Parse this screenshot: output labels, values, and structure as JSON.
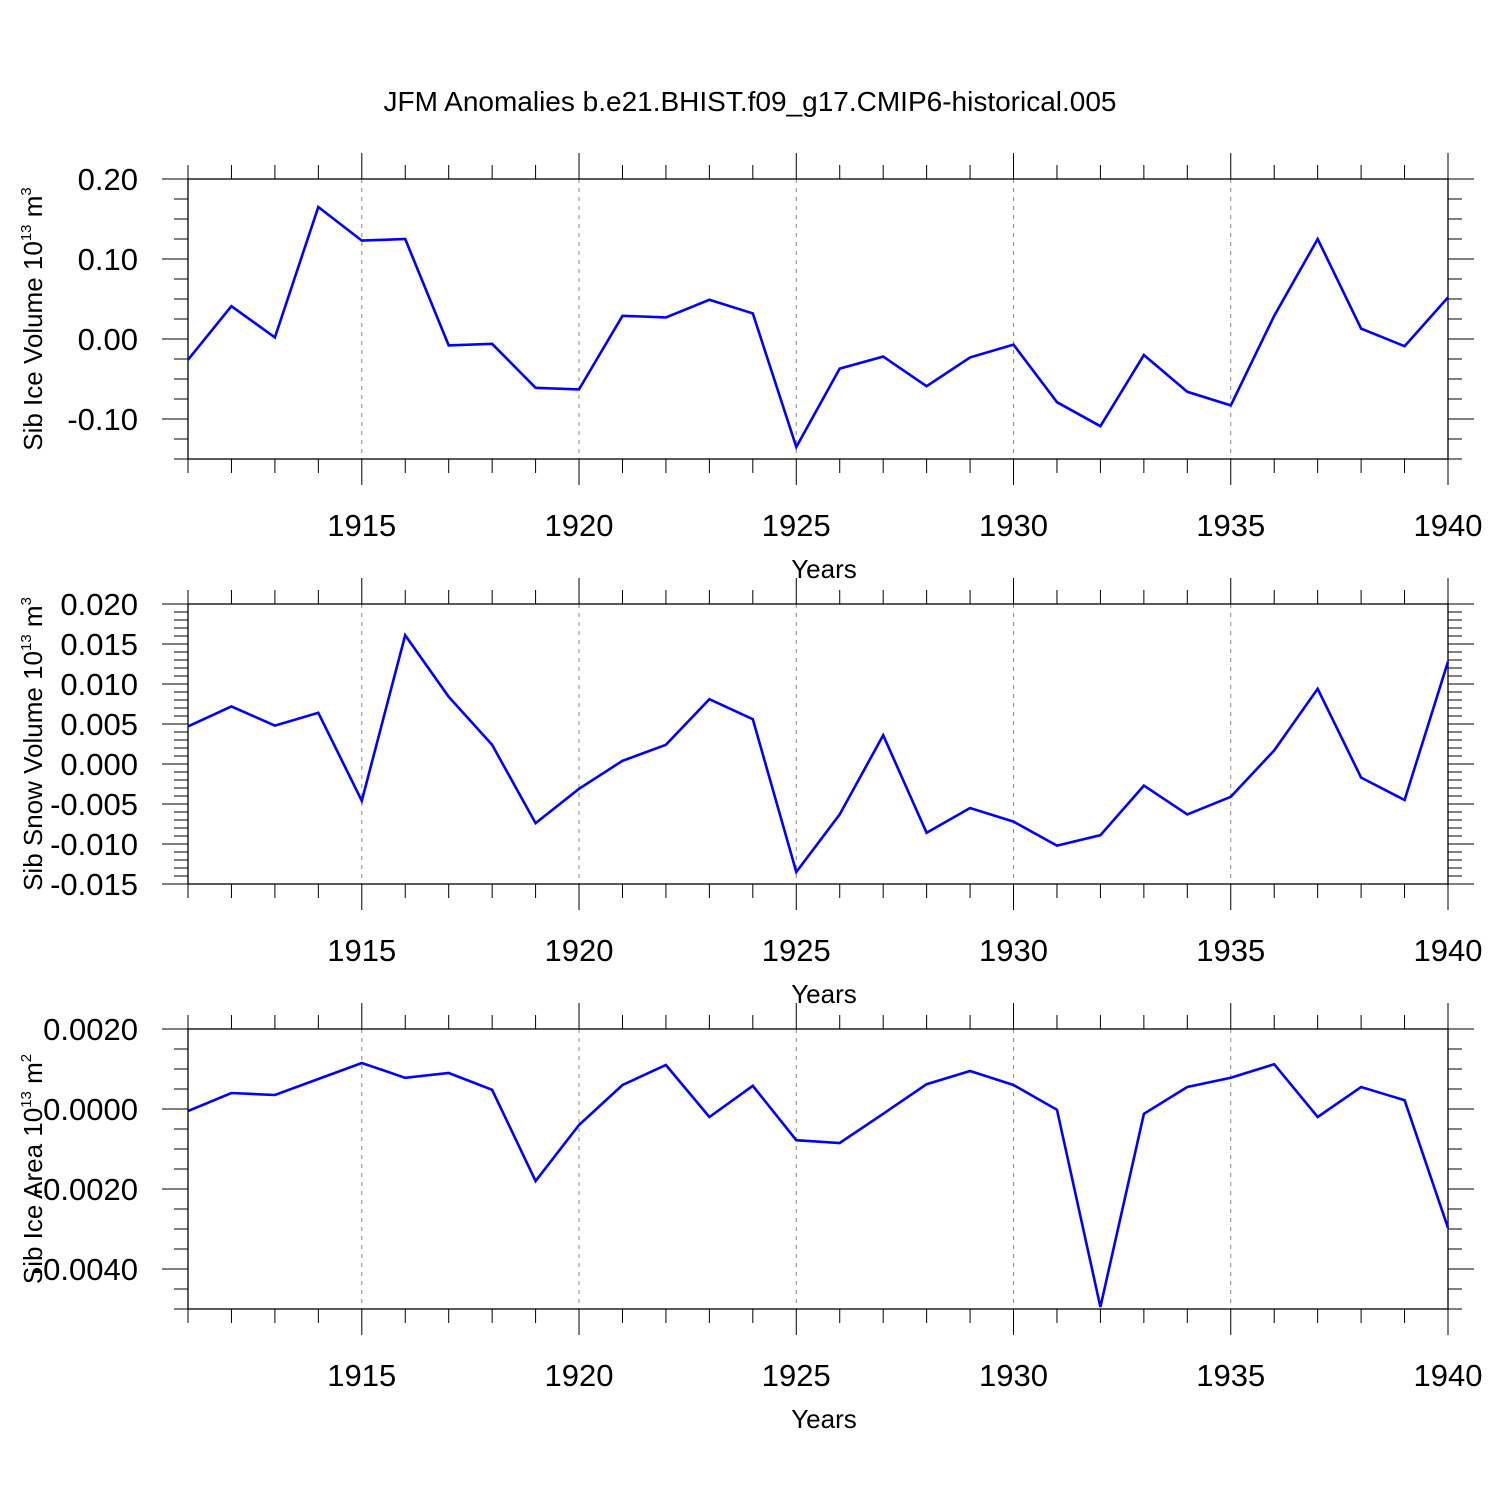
{
  "title": "JFM Anomalies b.e21.BHIST.f09_g17.CMIP6-historical.005",
  "colors": {
    "line": "#0000ff",
    "axis": "#000000",
    "grid": "#888888"
  },
  "chart_data": [
    {
      "type": "line",
      "ylabel_main": "Sib Ice Volume 10",
      "ylabel_exp": "13",
      "ylabel_tail": " m",
      "ylabel_unit_exp": "3",
      "xlabel": "Years",
      "xlim": [
        1911,
        1940
      ],
      "ylim": [
        -0.15,
        0.2
      ],
      "yticks": [
        -0.1,
        0.0,
        0.1,
        0.2
      ],
      "yticklabels": [
        "-0.10",
        "0.00",
        "0.10",
        "0.20"
      ],
      "yminor": 0.025,
      "xticks": [
        1915,
        1920,
        1925,
        1930,
        1935,
        1940
      ],
      "xticklabels": [
        "1915",
        "1920",
        "1925",
        "1930",
        "1935",
        "1940"
      ],
      "grid_x": [
        1915,
        1920,
        1925,
        1930,
        1935
      ],
      "series": [
        {
          "name": "Sib Ice Volume",
          "x": [
            1911,
            1912,
            1913,
            1914,
            1915,
            1916,
            1917,
            1918,
            1919,
            1920,
            1921,
            1922,
            1923,
            1924,
            1925,
            1926,
            1927,
            1928,
            1929,
            1930,
            1931,
            1932,
            1933,
            1934,
            1935,
            1936,
            1937,
            1938,
            1939,
            1940
          ],
          "values": [
            -0.026,
            0.041,
            0.002,
            0.165,
            0.123,
            0.125,
            -0.008,
            -0.006,
            -0.061,
            -0.063,
            0.029,
            0.027,
            0.049,
            0.032,
            -0.135,
            -0.037,
            -0.022,
            -0.059,
            -0.023,
            -0.007,
            -0.079,
            -0.109,
            -0.02,
            -0.066,
            -0.083,
            0.029,
            0.125,
            0.013,
            -0.009,
            0.052
          ]
        }
      ]
    },
    {
      "type": "line",
      "ylabel_main": "Sib Snow Volume 10",
      "ylabel_exp": "13",
      "ylabel_tail": " m",
      "ylabel_unit_exp": "3",
      "xlabel": "Years",
      "xlim": [
        1911,
        1940
      ],
      "ylim": [
        -0.015,
        0.02
      ],
      "yticks": [
        -0.015,
        -0.01,
        -0.005,
        0.0,
        0.005,
        0.01,
        0.015,
        0.02
      ],
      "yticklabels": [
        "-0.015",
        "-0.010",
        "-0.005",
        "0.000",
        "0.005",
        "0.010",
        "0.015",
        "0.020"
      ],
      "yminor": 0.001,
      "xticks": [
        1915,
        1920,
        1925,
        1930,
        1935,
        1940
      ],
      "xticklabels": [
        "1915",
        "1920",
        "1925",
        "1930",
        "1935",
        "1940"
      ],
      "grid_x": [
        1915,
        1920,
        1925,
        1930,
        1935
      ],
      "series": [
        {
          "name": "Sib Snow Volume",
          "x": [
            1911,
            1912,
            1913,
            1914,
            1915,
            1916,
            1917,
            1918,
            1919,
            1920,
            1921,
            1922,
            1923,
            1924,
            1925,
            1926,
            1927,
            1928,
            1929,
            1930,
            1931,
            1932,
            1933,
            1934,
            1935,
            1936,
            1937,
            1938,
            1939,
            1940
          ],
          "values": [
            0.0047,
            0.0072,
            0.0048,
            0.0064,
            -0.0046,
            0.0161,
            0.0084,
            0.0024,
            -0.0074,
            -0.0031,
            0.0004,
            0.0024,
            0.0081,
            0.0056,
            -0.0135,
            -0.0063,
            0.0036,
            -0.0086,
            -0.0055,
            -0.0072,
            -0.0102,
            -0.0089,
            -0.0027,
            -0.0063,
            -0.0041,
            0.0017,
            0.0094,
            -0.0017,
            -0.0045,
            0.0128
          ]
        }
      ]
    },
    {
      "type": "line",
      "ylabel_main": "Sib Ice Area 10",
      "ylabel_exp": "13",
      "ylabel_tail": " m",
      "ylabel_unit_exp": "2",
      "xlabel": "Years",
      "xlim": [
        1911,
        1940
      ],
      "ylim": [
        -0.005,
        0.002
      ],
      "yticks": [
        -0.004,
        -0.002,
        0.0,
        0.002
      ],
      "yticklabels": [
        "-0.0040",
        "-0.0020",
        "0.0000",
        "0.0020"
      ],
      "yminor": 0.0005,
      "xticks": [
        1915,
        1920,
        1925,
        1930,
        1935,
        1940
      ],
      "xticklabels": [
        "1915",
        "1920",
        "1925",
        "1930",
        "1935",
        "1940"
      ],
      "grid_x": [
        1915,
        1920,
        1925,
        1930,
        1935
      ],
      "series": [
        {
          "name": "Sib Ice Area",
          "x": [
            1911,
            1912,
            1913,
            1914,
            1915,
            1916,
            1917,
            1918,
            1919,
            1920,
            1921,
            1922,
            1923,
            1924,
            1925,
            1926,
            1927,
            1928,
            1929,
            1930,
            1931,
            1932,
            1933,
            1934,
            1935,
            1936,
            1937,
            1938,
            1939,
            1940
          ],
          "values": [
            -5e-05,
            0.0004,
            0.00035,
            0.00075,
            0.00115,
            0.00078,
            0.0009,
            0.00048,
            -0.0018,
            -0.0004,
            0.0006,
            0.0011,
            -0.0002,
            0.00058,
            -0.00078,
            -0.00085,
            -0.00012,
            0.00062,
            0.00095,
            0.0006,
            -2e-05,
            -0.00495,
            -0.00012,
            0.00055,
            0.00078,
            0.00112,
            -0.0002,
            0.00055,
            0.00022,
            -0.00297
          ]
        }
      ]
    }
  ]
}
